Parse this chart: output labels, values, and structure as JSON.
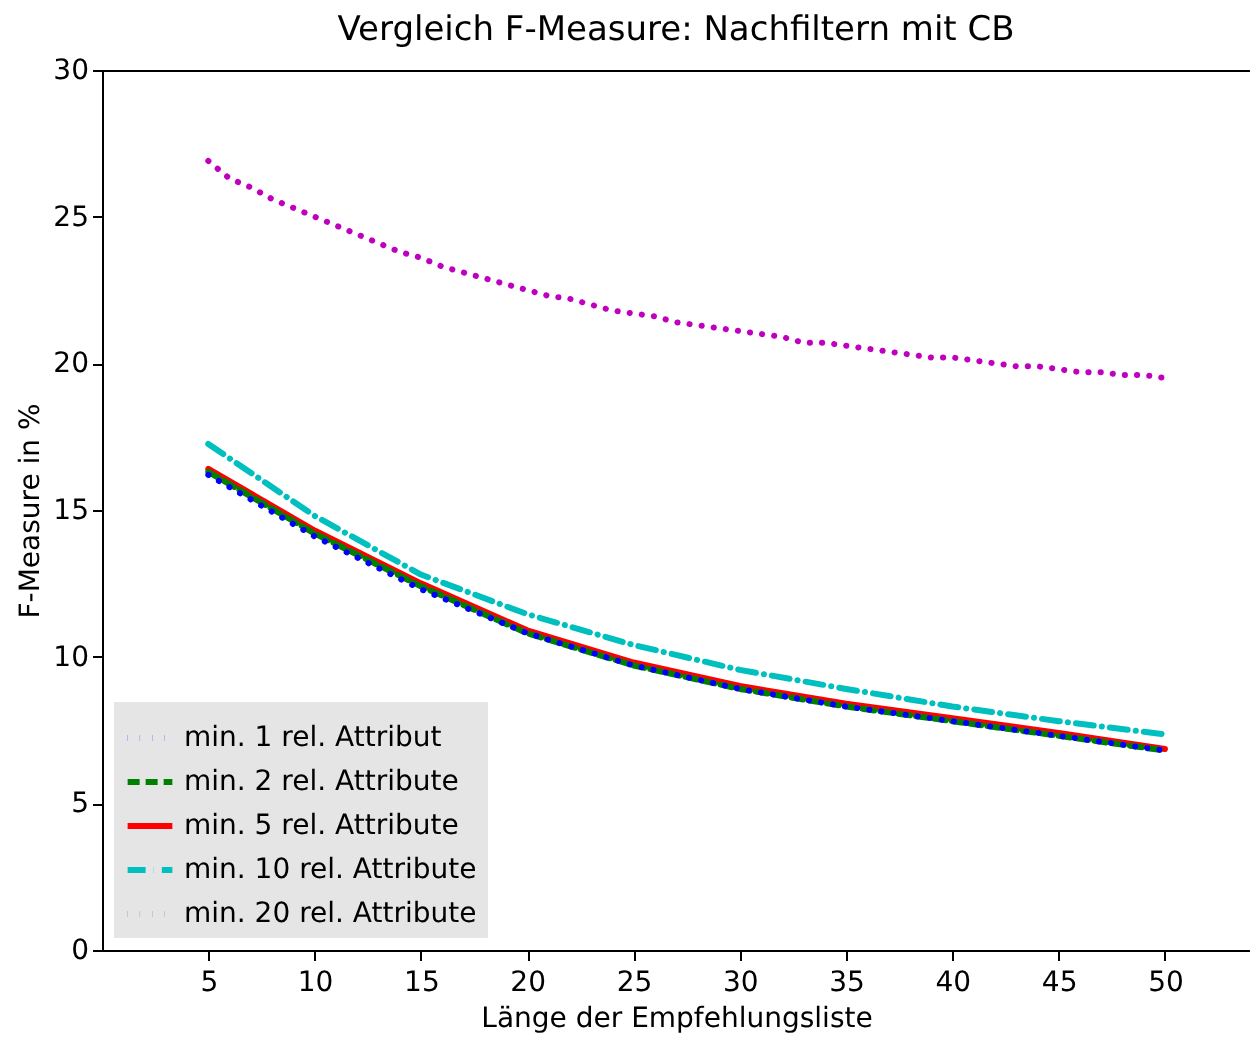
{
  "chart_data": {
    "type": "line",
    "title": "Vergleich F-Measure: Nachfiltern mit CB",
    "xlabel": "Länge der Empfehlungsliste",
    "ylabel": "F-Measure in %",
    "xlim": [
      0,
      54
    ],
    "xticks": [
      5,
      10,
      15,
      20,
      25,
      30,
      35,
      40,
      45,
      50
    ],
    "ylim": [
      0,
      30
    ],
    "yticks": [
      0,
      5,
      10,
      15,
      20,
      25,
      30
    ],
    "grid": false,
    "legend": "bottom left",
    "series": [
      {
        "name": "min. 1 rel. Attribut",
        "color": "#0000ff",
        "line_style": "dotted",
        "x": [
          5,
          10,
          15,
          20,
          25,
          30,
          35,
          40,
          45,
          50
        ],
        "values": [
          16.2,
          14.1,
          12.3,
          10.8,
          9.7,
          8.9,
          8.3,
          7.8,
          7.3,
          6.8
        ]
      },
      {
        "name": "min. 2 rel. Attribute",
        "color": "#008000",
        "line_style": "dashed",
        "x": [
          5,
          10,
          15,
          20,
          25,
          30,
          35,
          40,
          45,
          50
        ],
        "values": [
          16.3,
          14.2,
          12.4,
          10.8,
          9.7,
          8.9,
          8.3,
          7.8,
          7.3,
          6.8
        ]
      },
      {
        "name": "min. 5 rel. Attribute",
        "color": "#ff0000",
        "line_style": "solid",
        "x": [
          5,
          10,
          15,
          20,
          25,
          30,
          35,
          40,
          45,
          50
        ],
        "values": [
          16.4,
          14.3,
          12.5,
          10.9,
          9.8,
          9.0,
          8.4,
          7.9,
          7.4,
          6.85
        ]
      },
      {
        "name": "min. 10 rel. Attribute",
        "color": "#00bfbf",
        "line_style": "dashdot",
        "x": [
          5,
          10,
          15,
          20,
          25,
          30,
          35,
          40,
          45,
          50
        ],
        "values": [
          17.25,
          14.8,
          12.8,
          11.45,
          10.4,
          9.55,
          8.9,
          8.3,
          7.8,
          7.35
        ]
      },
      {
        "name": "min. 20 rel. Attribute",
        "color": "#bf00bf",
        "line_style": "dotted",
        "x": [
          5,
          6,
          7,
          8,
          9,
          10,
          11,
          12,
          13,
          14,
          15,
          16,
          17,
          18,
          19,
          20,
          21,
          22,
          23,
          24,
          25,
          26,
          27,
          28,
          29,
          30,
          31,
          32,
          33,
          34,
          35,
          36,
          37,
          38,
          39,
          40,
          41,
          42,
          43,
          44,
          45,
          46,
          47,
          48,
          49,
          50
        ],
        "values": [
          26.9,
          26.3,
          26.0,
          25.6,
          25.3,
          25.0,
          24.7,
          24.4,
          24.1,
          23.8,
          23.6,
          23.3,
          23.1,
          22.9,
          22.7,
          22.5,
          22.3,
          22.2,
          22.0,
          21.8,
          21.7,
          21.6,
          21.4,
          21.3,
          21.2,
          21.1,
          21.0,
          20.9,
          20.7,
          20.7,
          20.6,
          20.5,
          20.4,
          20.3,
          20.2,
          20.2,
          20.1,
          20.0,
          19.9,
          19.9,
          19.8,
          19.7,
          19.7,
          19.6,
          19.6,
          19.5
        ]
      }
    ]
  }
}
